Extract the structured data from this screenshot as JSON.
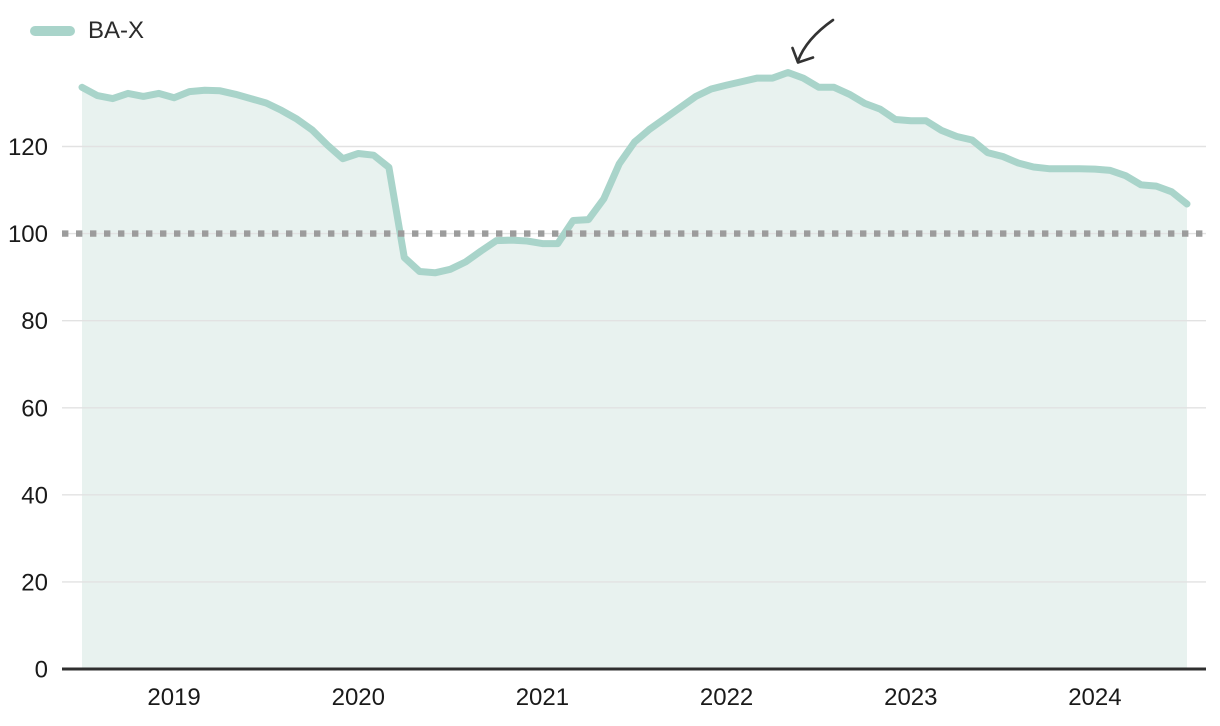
{
  "legend": {
    "label": "BA-X",
    "swatch_color": "#a9d4ca"
  },
  "chart_data": {
    "type": "area",
    "title": "",
    "xlabel": "",
    "ylabel": "",
    "frequency": "monthly",
    "x_start": "2018-07",
    "x_end": "2024-07",
    "x_tick_labels": [
      "2019",
      "2020",
      "2021",
      "2022",
      "2023",
      "2024"
    ],
    "x_tick_indices": [
      6,
      18,
      30,
      42,
      54,
      66
    ],
    "y_ticks": [
      0,
      20,
      40,
      60,
      80,
      100,
      120
    ],
    "ylim": [
      0,
      140
    ],
    "grid": "horizontal",
    "grid_color": "#e2e2e2",
    "axis_line_color": "#2f2f2f",
    "tick_label_color": "#1a1a1a",
    "legend_position": "top-left",
    "reference_line": {
      "value": 100,
      "style": "dotted",
      "color": "#9c9c9c"
    },
    "annotation": {
      "type": "arrow",
      "points_at": "peak 2022-05 ≈ 137",
      "color": "#333333"
    },
    "series": [
      {
        "name": "BA-X",
        "color": "#a9d4ca",
        "area_color": "#e8f2ef",
        "values": [
          133.6,
          131.7,
          131.0,
          132.2,
          131.5,
          132.2,
          131.2,
          132.6,
          132.9,
          132.8,
          132.0,
          131.0,
          130.0,
          128.3,
          126.3,
          123.8,
          120.3,
          117.2,
          118.4,
          118.0,
          115.2,
          94.5,
          91.3,
          91.0,
          91.8,
          93.5,
          96.0,
          98.4,
          98.5,
          98.3,
          97.7,
          97.7,
          103.0,
          103.2,
          108.0,
          116.0,
          121.0,
          124.0,
          126.5,
          129.0,
          131.5,
          133.2,
          134.1,
          134.9,
          135.7,
          135.7,
          137.0,
          135.7,
          133.6,
          133.6,
          132.0,
          129.9,
          128.6,
          126.2,
          125.9,
          125.9,
          123.7,
          122.3,
          121.5,
          118.6,
          117.7,
          116.2,
          115.3,
          114.9,
          114.9,
          114.9,
          114.8,
          114.5,
          113.3,
          111.2,
          110.9,
          109.6,
          106.8
        ]
      }
    ]
  }
}
